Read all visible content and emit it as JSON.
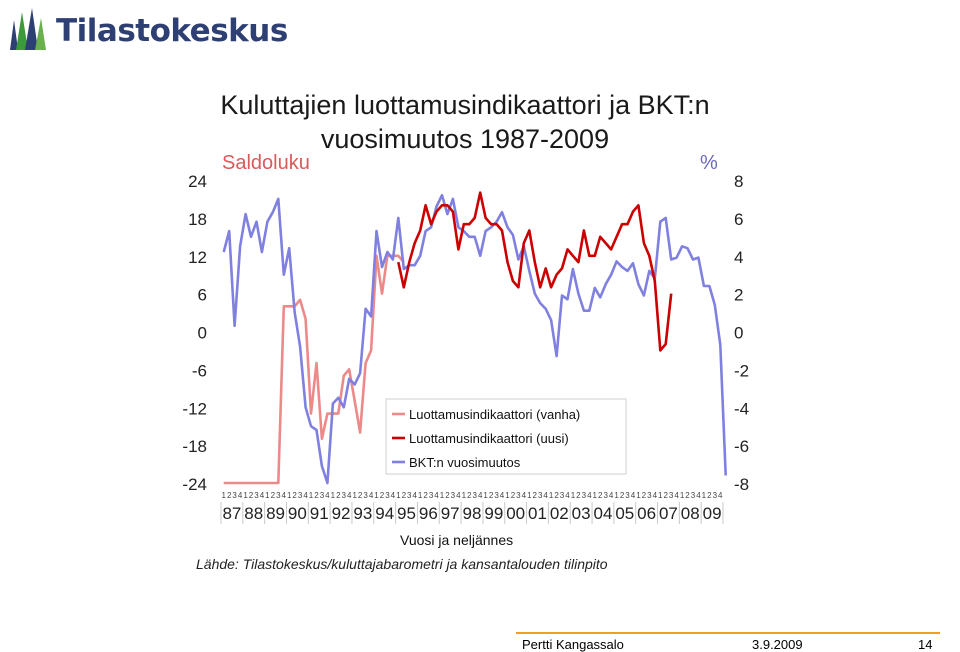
{
  "header": {
    "logo_text": "Tilastokeskus",
    "logo_icon": "tilastokeskus-bars-icon"
  },
  "footer": {
    "author": "Pertti Kangassalo",
    "date": "3.9.2009",
    "page": "14"
  },
  "colors": {
    "vanha": "#ec8a8a",
    "uusi": "#cc0000",
    "bkt": "#8080e0",
    "text": "#222222"
  },
  "chart_data": {
    "type": "line",
    "title": "Kuluttajien luottamusindikaattori ja BKT:n vuosimuutos 1987-2009",
    "left_axis": {
      "label": "Saldoluku",
      "range": [
        -24,
        24
      ],
      "ticks": [
        "24",
        "18",
        "12",
        "6",
        "0",
        "-6",
        "-12",
        "-18",
        "-24"
      ]
    },
    "right_axis": {
      "label": "%",
      "range": [
        -8,
        8
      ],
      "ticks": [
        "8",
        "6",
        "4",
        "2",
        "0",
        "-2",
        "-4",
        "-6",
        "-8"
      ]
    },
    "xlabel": "Vuosi ja neljännes",
    "quarter_labels": [
      "1",
      "2",
      "3",
      "4"
    ],
    "year_labels": [
      "87",
      "88",
      "89",
      "90",
      "91",
      "92",
      "93",
      "94",
      "95",
      "96",
      "97",
      "98",
      "99",
      "00",
      "01",
      "02",
      "03",
      "04",
      "05",
      "06",
      "07",
      "08",
      "09"
    ],
    "x_start": "1987Q1",
    "legend": {
      "position": "center",
      "entries": [
        "Luottamusindikaattori (vanha)",
        "Luottamusindikaattori (uusi)",
        "BKT:n vuosimuutos"
      ]
    },
    "source": "Lähde: Tilastokeskus/kuluttajabarometri ja kansantalouden tilinpito",
    "series": [
      {
        "name": "Luottamusindikaattori (vanha)",
        "axis": "left",
        "start": "1987Q1",
        "values": [
          -24,
          -24,
          -24,
          -24,
          -24,
          -24,
          -24,
          -24,
          -24,
          -24,
          -24,
          4,
          4,
          4,
          5,
          2,
          -13,
          -5,
          -17,
          -13,
          -13,
          -13,
          -7,
          -6,
          -11,
          -16,
          -5,
          -3,
          12,
          6,
          12,
          12,
          12,
          11
        ]
      },
      {
        "name": "Luottamusindikaattori (uusi)",
        "axis": "left",
        "start": "1995Q1",
        "values": [
          11,
          7,
          11,
          14,
          16,
          20,
          17,
          19,
          20,
          20,
          19,
          13,
          17,
          17,
          18,
          22,
          18,
          17,
          17,
          16,
          11,
          8,
          7,
          14,
          16,
          11,
          7,
          10,
          7,
          9,
          10,
          13,
          12,
          11,
          16,
          12,
          12,
          15,
          14,
          13,
          15,
          17,
          17,
          19,
          20,
          14,
          12,
          8,
          -3,
          -2,
          6
        ]
      }
    ],
    "bkt_series": {
      "name": "BKT:n vuosimuutos",
      "axis": "right",
      "start": "1987Q1",
      "values": [
        4.2,
        5.3,
        0.3,
        4.5,
        6.2,
        5,
        5.8,
        4.2,
        5.8,
        6.3,
        7,
        3,
        4.4,
        1,
        -0.8,
        -4,
        -5,
        -5.2,
        -7.1,
        -8,
        -3.8,
        -3.5,
        -4,
        -2.5,
        -2.8,
        -2.2,
        1.2,
        0.8,
        5.3,
        3.4,
        4.2,
        3.8,
        6,
        3.3,
        3.5,
        3.5,
        4,
        5.3,
        5.5,
        6.6,
        7.2,
        6.2,
        7,
        5.5,
        5.3,
        5,
        5,
        4,
        5.3,
        5.5,
        5.8,
        6.3,
        5.5,
        5.1,
        3.8,
        4.5,
        3.2,
        2,
        1.5,
        1.2,
        0.6,
        -1.3,
        1.9,
        1.7,
        3.3,
        2,
        1.1,
        1.1,
        2.3,
        1.8,
        2.5,
        3,
        3.7,
        3.4,
        3.2,
        3.6,
        2.5,
        1.9,
        3.2,
        2.8,
        5.8,
        6,
        3.8,
        3.9,
        4.5,
        4.4,
        3.8,
        3.9,
        2.4,
        2.4,
        1.4,
        -0.7,
        -7.6
      ]
    }
  }
}
